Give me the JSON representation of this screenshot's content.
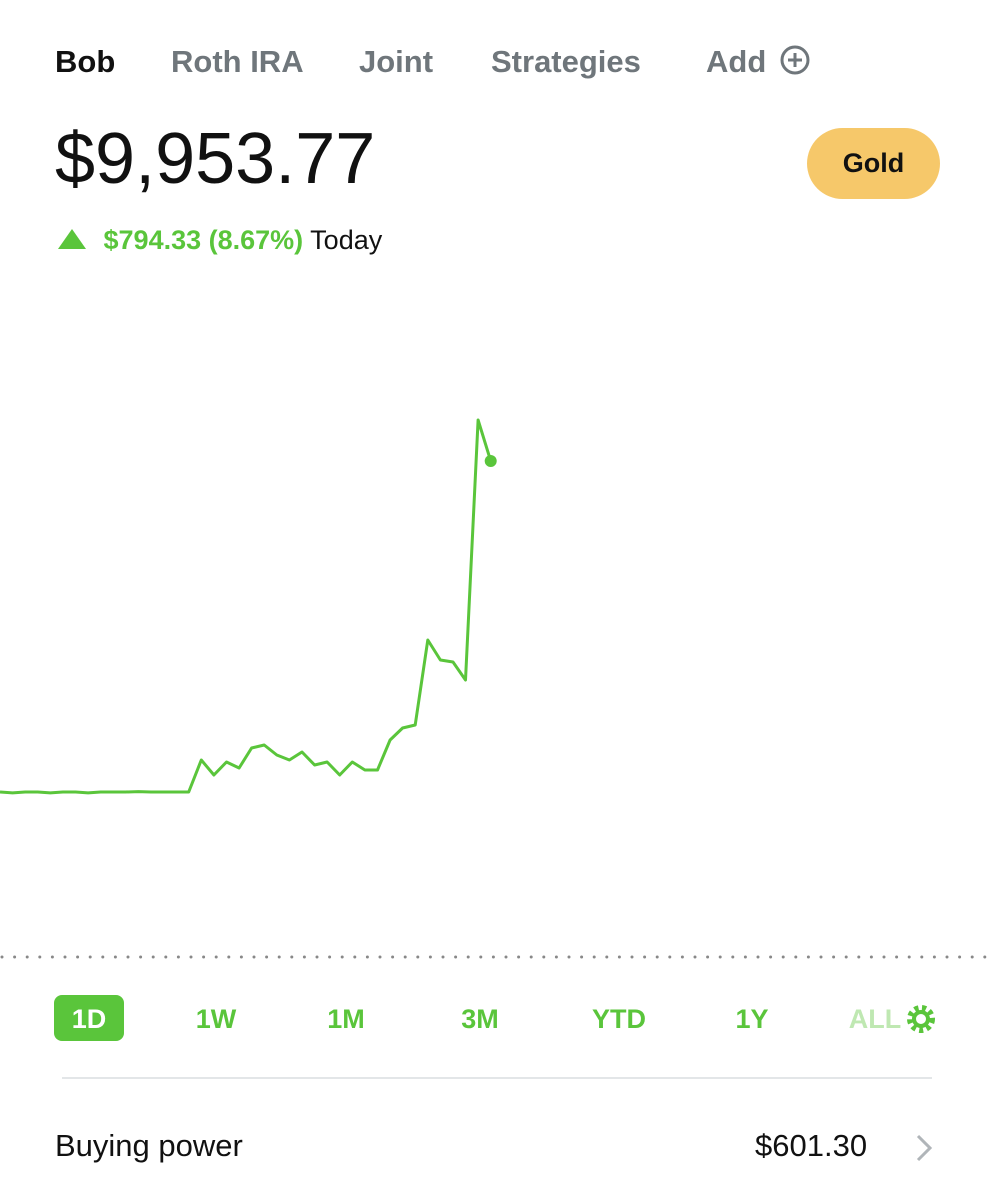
{
  "tabs": [
    "Bob",
    "Roth IRA",
    "Joint",
    "Strategies",
    "Add"
  ],
  "balance": "$9,953.77",
  "change": {
    "amount": "$794.33 (8.67%)",
    "period": "Today"
  },
  "gold_button": "Gold",
  "ranges": [
    "1D",
    "1W",
    "1M",
    "3M",
    "YTD",
    "1Y",
    "ALL"
  ],
  "buying_power": {
    "label": "Buying power",
    "value": "$601.30"
  },
  "chart_data": {
    "type": "line",
    "color": "#5ac53b",
    "ylim": [
      9160,
      10245
    ],
    "values": [
      9424.4,
      9423,
      9424.4,
      9424.4,
      9423,
      9424.4,
      9424.4,
      9423,
      9424.4,
      9424.4,
      9424.4,
      9425,
      9424.4,
      9424.4,
      9424.4,
      9424.4,
      9475.7,
      9451.7,
      9472.5,
      9462.9,
      9495,
      9499.8,
      9483.7,
      9475.7,
      9488.5,
      9467.7,
      9472.5,
      9451.7,
      9472.5,
      9459.7,
      9459.7,
      9507.8,
      9527,
      9531.8,
      9668,
      9636,
      9632.8,
      9603.9,
      10020.7,
      9955,
      null,
      null,
      null,
      null,
      null,
      null,
      null,
      null,
      null,
      null,
      null,
      null,
      null,
      null,
      null,
      null,
      null,
      null,
      null,
      null,
      null,
      null,
      null,
      null,
      null,
      null,
      null,
      null,
      null,
      null,
      null,
      null,
      null,
      null,
      null,
      null,
      null,
      null,
      null,
      null
    ]
  }
}
